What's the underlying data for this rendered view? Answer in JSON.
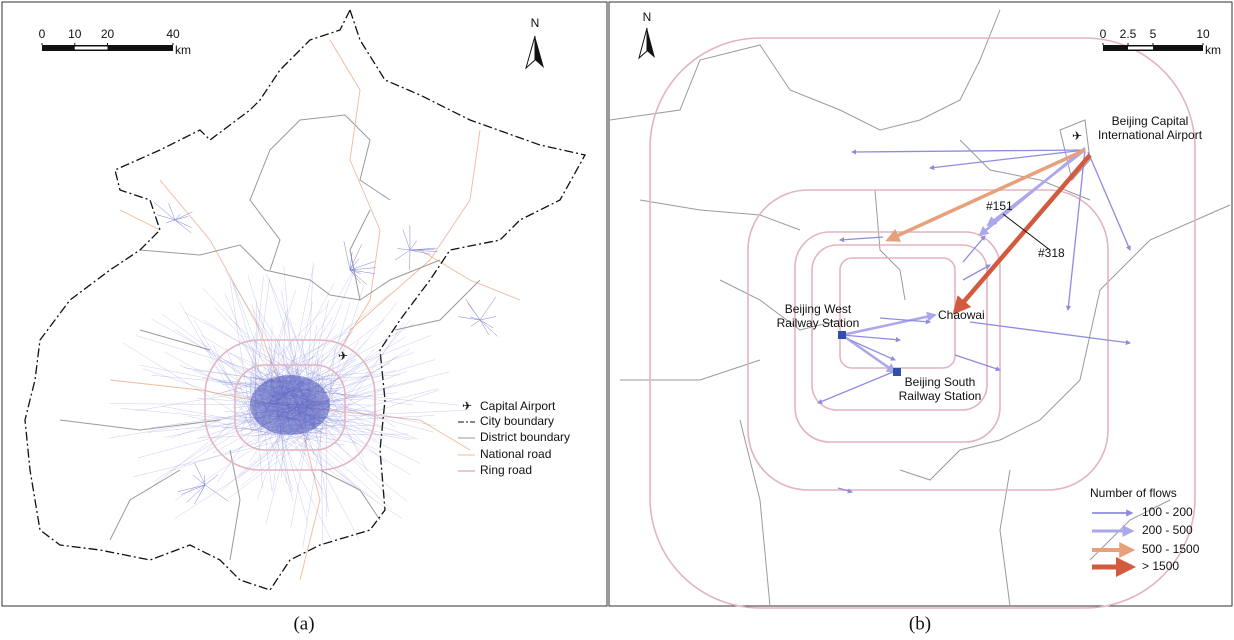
{
  "panel_a": {
    "caption": "(a)",
    "north": "N",
    "scale_bar": {
      "ticks": [
        0,
        10,
        20,
        40
      ],
      "unit": "km"
    },
    "legend": [
      "Capital Airport",
      "City boundary",
      "District boundary",
      "National road",
      "Ring road"
    ]
  },
  "panel_b": {
    "caption": "(b)",
    "north": "N",
    "scale_bar": {
      "ticks": [
        0,
        2.5,
        5,
        10
      ],
      "unit": "km"
    },
    "labels": {
      "airport": [
        "Beijing Capital",
        "International Airport"
      ],
      "route_151": "#151",
      "route_318": "#318",
      "chaowai": "Chaowai",
      "west_station": [
        "Beijing West",
        "Railway Station"
      ],
      "south_station": [
        "Beijing South",
        "Railway Station"
      ]
    },
    "legend": {
      "title": "Number of flows",
      "classes": [
        {
          "label": "100 - 200",
          "color": "#8e8ce0"
        },
        {
          "label": "200 - 500",
          "color": "#aaa7ec"
        },
        {
          "label": "500 - 1500",
          "color": "#e8a07a"
        },
        {
          "label": "> 1500",
          "color": "#d25a3e"
        }
      ]
    }
  }
}
